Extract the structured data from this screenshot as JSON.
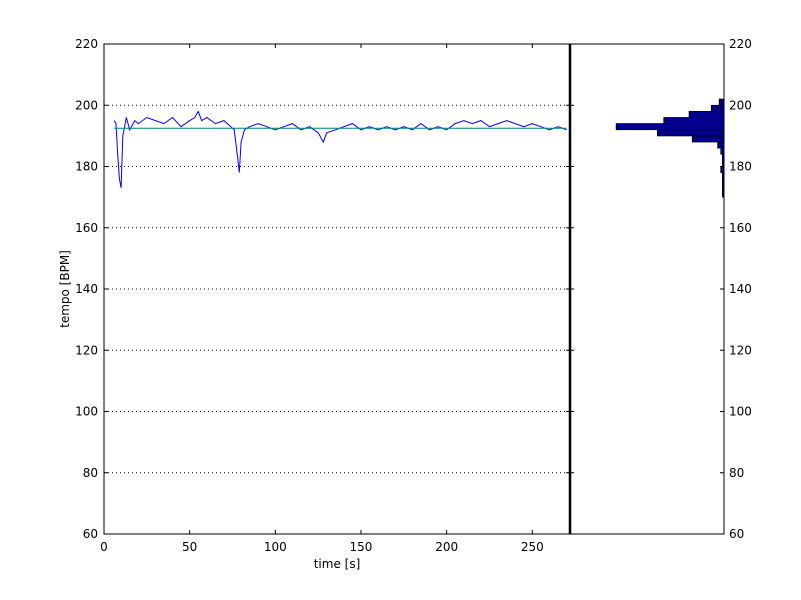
{
  "chart_data": [
    {
      "type": "line",
      "xlabel": "time [s]",
      "ylabel": "tempo [BPM]",
      "xlim": [
        0,
        272
      ],
      "ylim": [
        60,
        220
      ],
      "xticks": [
        0,
        50,
        100,
        150,
        200,
        250
      ],
      "yticks": [
        60,
        80,
        100,
        120,
        140,
        160,
        180,
        200,
        220
      ],
      "grid": "y-dotted",
      "series": [
        {
          "color": "#0000ff",
          "x": [
            6,
            7,
            8,
            9,
            10,
            11,
            12,
            13,
            15,
            18,
            20,
            25,
            30,
            35,
            40,
            45,
            50,
            53,
            55,
            57,
            60,
            65,
            70,
            74,
            76,
            78,
            79,
            80,
            82,
            85,
            90,
            95,
            100,
            105,
            110,
            115,
            120,
            125,
            128,
            130,
            135,
            140,
            145,
            150,
            155,
            160,
            165,
            170,
            175,
            180,
            185,
            190,
            195,
            200,
            205,
            210,
            215,
            220,
            225,
            230,
            235,
            240,
            245,
            250,
            255,
            260,
            265,
            270
          ],
          "y": [
            195,
            194,
            184,
            176,
            173,
            190,
            193,
            196,
            192,
            195,
            194,
            196,
            195,
            194,
            196,
            193,
            195,
            196,
            198,
            195,
            196,
            194,
            195,
            193,
            192,
            183,
            178,
            188,
            192,
            193,
            194,
            193,
            192,
            193,
            194,
            192,
            193,
            191,
            188,
            191,
            192,
            193,
            194,
            192,
            193,
            192,
            193,
            192,
            193,
            192,
            194,
            192,
            193,
            192,
            194,
            195,
            194,
            195,
            193,
            194,
            195,
            194,
            193,
            194,
            193,
            192,
            193,
            192
          ]
        },
        {
          "color": "#008080",
          "x": [
            6,
            270
          ],
          "y": [
            192.5,
            192.5
          ]
        }
      ]
    },
    {
      "type": "bar",
      "orientation": "horizontal",
      "bar_color": "#00008b",
      "ylim": [
        60,
        220
      ],
      "yticks": [
        60,
        80,
        100,
        120,
        140,
        160,
        180,
        200,
        220
      ],
      "bins": [
        170,
        172,
        174,
        176,
        178,
        180,
        182,
        184,
        186,
        188,
        190,
        192,
        194,
        196,
        198,
        200
      ],
      "counts": [
        1,
        1,
        1,
        1,
        2,
        1,
        1,
        2,
        4,
        20,
        42,
        68,
        38,
        22,
        8,
        3
      ]
    }
  ]
}
